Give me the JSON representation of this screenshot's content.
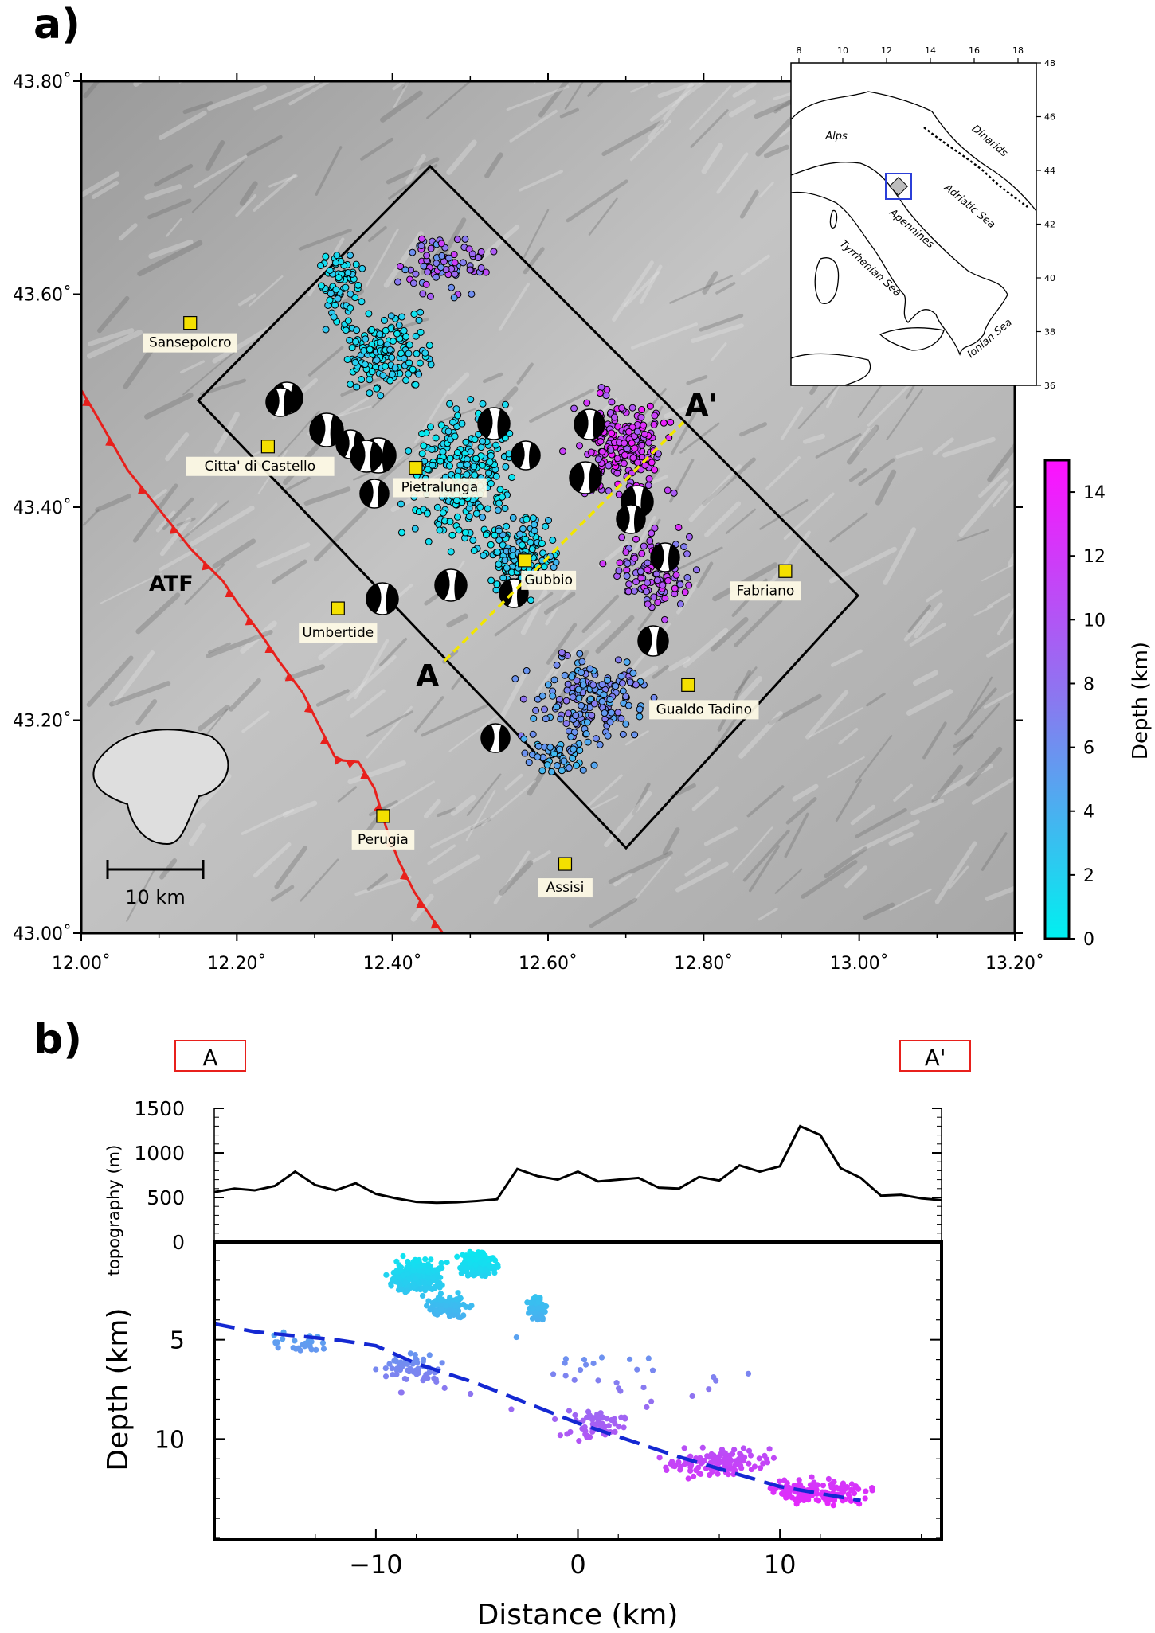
{
  "panels": {
    "a_label": "a)",
    "b_label": "b)"
  },
  "map": {
    "lon_ticks": [
      "12.00˚",
      "12.20˚",
      "12.40˚",
      "12.60˚",
      "12.80˚",
      "13.00˚",
      "13.20˚"
    ],
    "lat_ticks": [
      "43.00˚",
      "43.20˚",
      "43.40˚",
      "43.60˚",
      "43.80˚"
    ],
    "lon_range": [
      12.0,
      13.2
    ],
    "lat_range": [
      43.0,
      43.8
    ],
    "profile_labels": {
      "start": "A",
      "end": "A'"
    },
    "fault_label": "ATF",
    "scale_bar_label": "10 km",
    "towns": [
      {
        "name": "Sansepolcro",
        "lon": 12.14,
        "lat": 43.573
      },
      {
        "name": "Citta' di Castello",
        "lon": 12.24,
        "lat": 43.457
      },
      {
        "name": "Pietralunga",
        "lon": 12.43,
        "lat": 43.437
      },
      {
        "name": "Gubbio",
        "lon": 12.57,
        "lat": 43.35
      },
      {
        "name": "Umbertide",
        "lon": 12.33,
        "lat": 43.305
      },
      {
        "name": "Fabriano",
        "lon": 12.905,
        "lat": 43.34
      },
      {
        "name": "Gualdo Tadino",
        "lon": 12.78,
        "lat": 43.233
      },
      {
        "name": "Perugia",
        "lon": 12.388,
        "lat": 43.11
      },
      {
        "name": "Assisi",
        "lon": 12.622,
        "lat": 43.065
      }
    ],
    "colors": {
      "fault": "#e8201c",
      "profile_line": "#f2e600",
      "town_marker": "#f4e000"
    }
  },
  "colorbar": {
    "title": "Depth (km)",
    "ticks": [
      "0",
      "2",
      "4",
      "6",
      "8",
      "10",
      "12",
      "14"
    ],
    "range": [
      0,
      15
    ],
    "colors": [
      "#00f0f0",
      "#8a78f0",
      "#ff10ff"
    ]
  },
  "inset": {
    "x_ticks": [
      "8",
      "10",
      "12",
      "14",
      "16",
      "18"
    ],
    "y_ticks": [
      "36",
      "38",
      "40",
      "42",
      "44",
      "46",
      "48"
    ],
    "labels": [
      "Alps",
      "Dinarids",
      "Adriatic Sea",
      "Apennines",
      "Tyrrhenian Sea",
      "Ionian Sea"
    ]
  },
  "profile": {
    "label_a": "A",
    "label_b": "A'",
    "topo_ylabel": "topography (m)",
    "topo_ticks": [
      "1500",
      "1000",
      "500",
      "0"
    ],
    "depth_ylabel": "Depth (km)",
    "depth_ticks": [
      "5",
      "10"
    ],
    "xlabel": "Distance (km)",
    "x_ticks": [
      "−10",
      "0",
      "10"
    ]
  },
  "chart_data": {
    "type": "scatter",
    "x_range": [
      -18,
      18
    ],
    "depth_range": [
      0,
      15
    ],
    "topo_range": [
      0,
      1500
    ],
    "topography": [
      [
        -18,
        560
      ],
      [
        -17,
        600
      ],
      [
        -16,
        580
      ],
      [
        -15,
        630
      ],
      [
        -14,
        790
      ],
      [
        -13,
        640
      ],
      [
        -12,
        580
      ],
      [
        -11,
        660
      ],
      [
        -10,
        540
      ],
      [
        -9,
        490
      ],
      [
        -8,
        450
      ],
      [
        -7,
        440
      ],
      [
        -6,
        445
      ],
      [
        -5,
        460
      ],
      [
        -4,
        480
      ],
      [
        -3,
        820
      ],
      [
        -2,
        740
      ],
      [
        -1,
        700
      ],
      [
        0,
        790
      ],
      [
        1,
        680
      ],
      [
        2,
        700
      ],
      [
        3,
        720
      ],
      [
        4,
        610
      ],
      [
        5,
        600
      ],
      [
        6,
        730
      ],
      [
        7,
        690
      ],
      [
        8,
        860
      ],
      [
        9,
        790
      ],
      [
        10,
        850
      ],
      [
        11,
        1300
      ],
      [
        12,
        1200
      ],
      [
        13,
        830
      ],
      [
        14,
        720
      ],
      [
        15,
        520
      ],
      [
        16,
        530
      ],
      [
        17,
        490
      ],
      [
        18,
        470
      ]
    ],
    "dashed_fault": [
      [
        -18,
        4.2
      ],
      [
        -16,
        4.6
      ],
      [
        -12,
        5.0
      ],
      [
        -10,
        5.3
      ],
      [
        -8,
        6.2
      ],
      [
        -5,
        7.2
      ],
      [
        0,
        9.2
      ],
      [
        5,
        10.9
      ],
      [
        10,
        12.4
      ],
      [
        14,
        13.1
      ]
    ],
    "dashed_color": "#1428d2"
  }
}
